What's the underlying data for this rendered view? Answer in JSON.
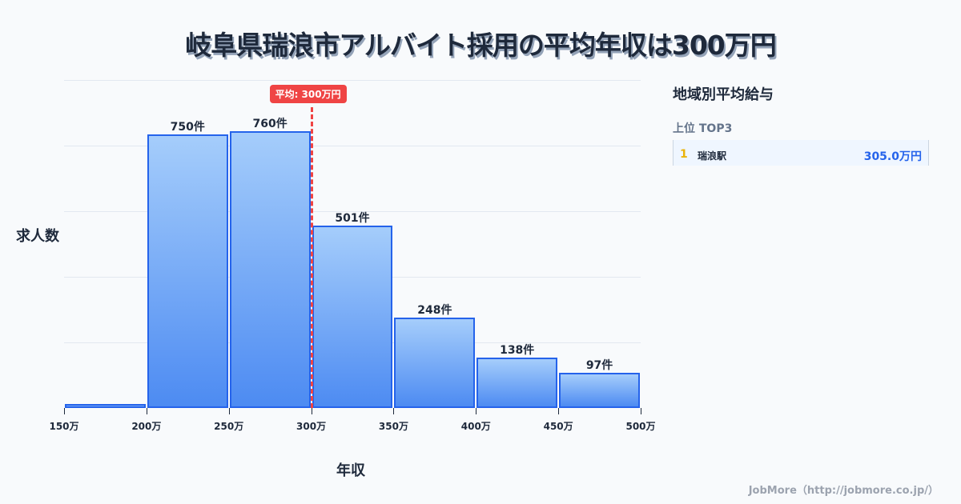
{
  "title": "岐阜県瑞浪市アルバイト採用の平均年収は300万円",
  "chart_data": {
    "type": "bar",
    "title": "岐阜県瑞浪市アルバイト採用の平均年収は300万円",
    "xlabel": "年収",
    "ylabel": "求人数",
    "categories": [
      "150万-200万",
      "200万-250万",
      "250万-300万",
      "300万-350万",
      "350万-400万",
      "400万-450万",
      "450万-500万"
    ],
    "values": [
      11,
      750,
      760,
      501,
      248,
      138,
      97
    ],
    "value_labels": [
      "",
      "750件",
      "760件",
      "501件",
      "248件",
      "138件",
      "97件"
    ],
    "x_ticks": [
      "150万",
      "200万",
      "250万",
      "300万",
      "350万",
      "400万",
      "450万",
      "500万"
    ],
    "ylim": [
      0,
      900
    ],
    "grid": true,
    "average": {
      "value": 300,
      "label": "平均: 300万円"
    }
  },
  "axes": {
    "xlabel": "年収",
    "ylabel": "求人数"
  },
  "sidebar": {
    "title": "地域別平均給与",
    "subtitle": "上位 TOP3",
    "ranks": [
      {
        "rank": "1",
        "name": "瑞浪駅",
        "value": "305.0万円"
      }
    ]
  },
  "footer": "JobMore（http://jobmore.co.jp/）",
  "colors": {
    "bar_border": "#2563eb",
    "avg_line": "#ef4444",
    "rank_gold": "#eab308",
    "accent": "#2563eb"
  }
}
